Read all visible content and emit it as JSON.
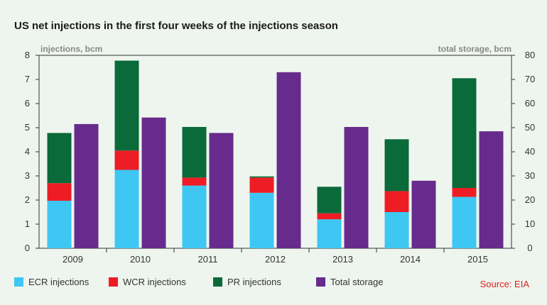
{
  "chart_data": {
    "type": "bar",
    "title": "US net injections in the first four weeks of the injections season",
    "left_axis_label": "injections, bcm",
    "right_axis_label": "total storage, bcm",
    "categories": [
      "2009",
      "2010",
      "2011",
      "2012",
      "2013",
      "2014",
      "2015"
    ],
    "left_ylim": [
      0,
      8
    ],
    "left_ticks": [
      "0",
      "1",
      "2",
      "3",
      "4",
      "5",
      "6",
      "7",
      "8"
    ],
    "right_ylim": [
      0,
      80
    ],
    "right_ticks": [
      "0",
      "10",
      "20",
      "30",
      "40",
      "50",
      "60",
      "70",
      "80"
    ],
    "stacked_series": [
      {
        "name": "ECR injections",
        "color": "#3ec7f2",
        "values": [
          1.97,
          3.25,
          2.6,
          2.3,
          1.2,
          1.5,
          2.13
        ]
      },
      {
        "name": "WCR injections",
        "color": "#ee1c25",
        "values": [
          0.73,
          0.8,
          0.33,
          0.63,
          0.25,
          0.87,
          0.37
        ]
      },
      {
        "name": "PR injections",
        "color": "#0a6a3a",
        "values": [
          2.08,
          3.73,
          2.1,
          0.05,
          1.1,
          2.15,
          4.55
        ]
      }
    ],
    "storage_series": {
      "name": "Total storage",
      "color": "#662b8c",
      "values": [
        51.5,
        54.2,
        47.8,
        73.0,
        50.3,
        28.0,
        48.5
      ]
    },
    "grid": false,
    "legend_position": "bottom"
  },
  "source": "Source: EIA"
}
